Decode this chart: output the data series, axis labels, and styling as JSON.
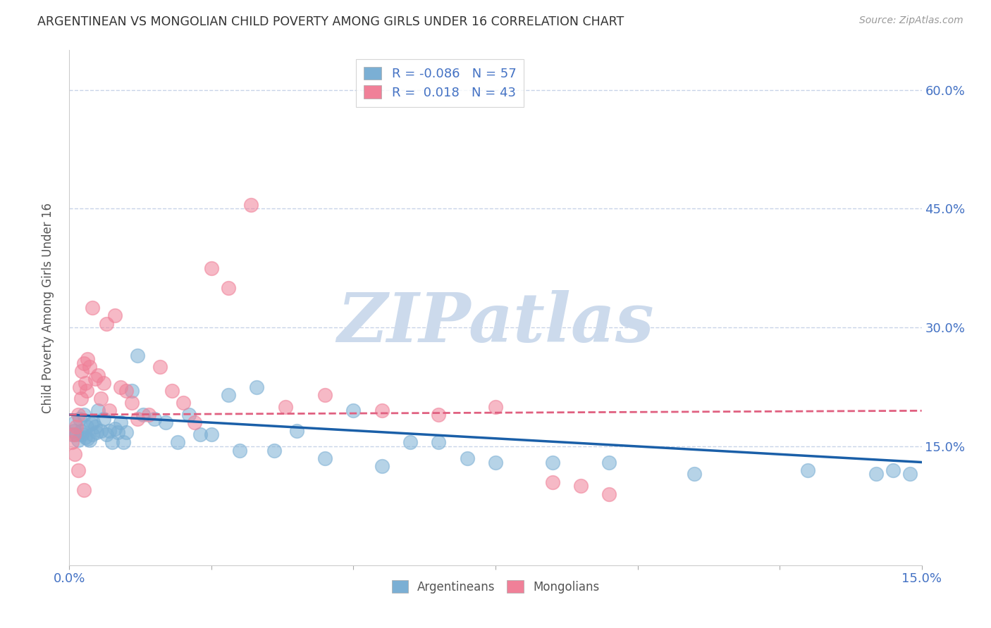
{
  "title": "ARGENTINEAN VS MONGOLIAN CHILD POVERTY AMONG GIRLS UNDER 16 CORRELATION CHART",
  "source": "Source: ZipAtlas.com",
  "ylabel": "Child Poverty Among Girls Under 16",
  "xlim": [
    0.0,
    15.0
  ],
  "ylim": [
    0.0,
    65.0
  ],
  "yticks": [
    15.0,
    30.0,
    45.0,
    60.0
  ],
  "xtick_minor": [
    0.0,
    2.5,
    5.0,
    7.5,
    10.0,
    12.5,
    15.0
  ],
  "xtick_labels_shown": {
    "0.0": "0.0%",
    "15.0": "15.0%"
  },
  "legend_line1": "R = -0.086   N = 57",
  "legend_line2": "R =  0.018   N = 43",
  "arg_color": "#7bafd4",
  "arg_color_edge": "#7bafd4",
  "mon_color": "#f08098",
  "mon_color_edge": "#f08098",
  "trend_arg_color": "#1a5fa8",
  "trend_mon_color": "#e06080",
  "background_color": "#ffffff",
  "grid_color": "#c8d4e8",
  "watermark_text": "ZIPatlas",
  "watermark_color": "#ccdaec",
  "argentineans_x": [
    0.05,
    0.08,
    0.1,
    0.12,
    0.15,
    0.18,
    0.2,
    0.22,
    0.25,
    0.28,
    0.3,
    0.32,
    0.35,
    0.38,
    0.4,
    0.42,
    0.45,
    0.48,
    0.5,
    0.55,
    0.6,
    0.65,
    0.7,
    0.75,
    0.8,
    0.85,
    0.9,
    0.95,
    1.0,
    1.1,
    1.2,
    1.3,
    1.5,
    1.7,
    1.9,
    2.1,
    2.3,
    2.5,
    2.8,
    3.0,
    3.3,
    3.6,
    4.0,
    4.5,
    5.0,
    5.5,
    6.0,
    6.5,
    7.0,
    7.5,
    8.5,
    9.5,
    11.0,
    13.0,
    14.2,
    14.5,
    14.8
  ],
  "argentineans_y": [
    16.5,
    17.0,
    18.0,
    16.5,
    15.8,
    18.5,
    17.0,
    16.5,
    19.0,
    16.2,
    17.5,
    16.0,
    15.8,
    17.8,
    16.5,
    18.0,
    17.5,
    16.8,
    19.5,
    17.0,
    18.5,
    16.5,
    17.0,
    15.5,
    17.2,
    16.8,
    18.0,
    15.5,
    16.8,
    22.0,
    26.5,
    19.0,
    18.5,
    18.0,
    15.5,
    19.0,
    16.5,
    16.5,
    21.5,
    14.5,
    22.5,
    14.5,
    17.0,
    13.5,
    19.5,
    12.5,
    15.5,
    15.5,
    13.5,
    13.0,
    13.0,
    13.0,
    11.5,
    12.0,
    11.5,
    12.0,
    11.5
  ],
  "mongolians_x": [
    0.05,
    0.08,
    0.1,
    0.12,
    0.15,
    0.18,
    0.2,
    0.22,
    0.25,
    0.28,
    0.3,
    0.32,
    0.35,
    0.4,
    0.45,
    0.5,
    0.55,
    0.6,
    0.65,
    0.7,
    0.8,
    0.9,
    1.0,
    1.1,
    1.2,
    1.4,
    1.6,
    1.8,
    2.0,
    2.2,
    2.5,
    2.8,
    3.2,
    3.8,
    4.5,
    5.5,
    6.5,
    7.5,
    8.5,
    9.0,
    9.5,
    0.15,
    0.25
  ],
  "mongolians_y": [
    15.5,
    16.5,
    14.0,
    17.5,
    19.0,
    22.5,
    21.0,
    24.5,
    25.5,
    23.0,
    22.0,
    26.0,
    25.0,
    32.5,
    23.5,
    24.0,
    21.0,
    23.0,
    30.5,
    19.5,
    31.5,
    22.5,
    22.0,
    20.5,
    18.5,
    19.0,
    25.0,
    22.0,
    20.5,
    18.0,
    37.5,
    35.0,
    45.5,
    20.0,
    21.5,
    19.5,
    19.0,
    20.0,
    10.5,
    10.0,
    9.0,
    12.0,
    9.5
  ],
  "trend_arg_x0": 0.0,
  "trend_arg_y0": 19.0,
  "trend_arg_x1": 15.0,
  "trend_arg_y1": 13.0,
  "trend_mon_x0": 0.0,
  "trend_mon_y0": 19.0,
  "trend_mon_x1": 15.0,
  "trend_mon_y1": 19.5
}
